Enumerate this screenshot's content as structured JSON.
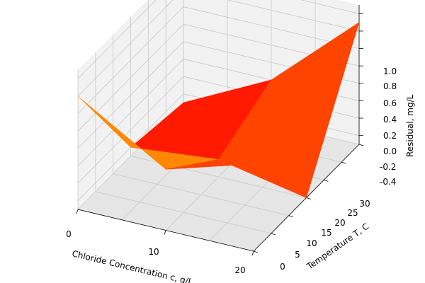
{
  "chart_data": {
    "type": "surface3d",
    "title": "",
    "xlabel": "Chloride Concentration c, g/L",
    "ylabel": "Temperature T, C",
    "zlabel": "Residual, mg/L",
    "xticks": [
      "0",
      "10",
      "20"
    ],
    "yticks": [
      "0",
      "5",
      "10",
      "15",
      "20",
      "25",
      "30"
    ],
    "zticks": [
      "-0.4",
      "-0.2",
      "0.0",
      "0.2",
      "0.4",
      "0.6",
      "0.8",
      "1.0"
    ],
    "colormap": "autumn",
    "grid": true,
    "surface": {
      "x": [
        0,
        10,
        20
      ],
      "y": [
        0,
        15,
        30
      ],
      "z": [
        [
          0.8,
          0.2,
          0.5
        ],
        [
          -0.4,
          -0.3,
          -0.5
        ],
        [
          -0.5,
          0.0,
          0.9
        ]
      ]
    }
  }
}
